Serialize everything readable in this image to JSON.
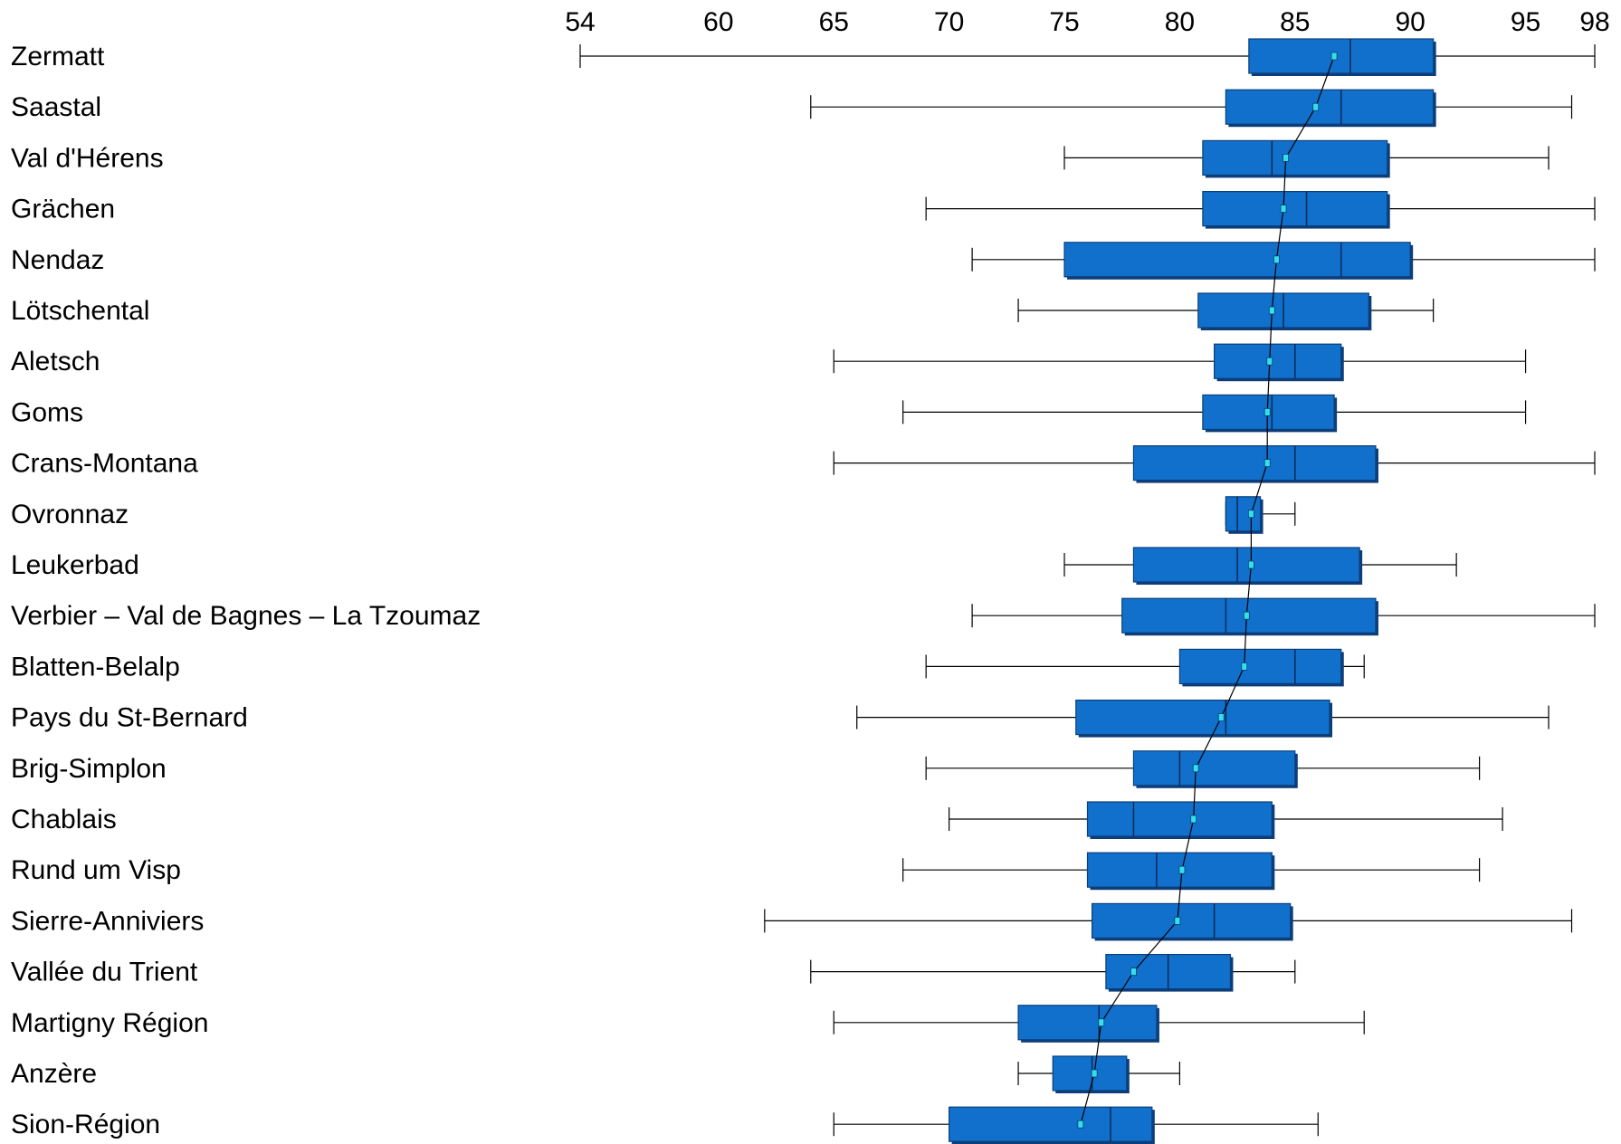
{
  "chart_data": {
    "type": "boxplot",
    "orientation": "horizontal",
    "title": "",
    "xlabel": "",
    "ylabel": "",
    "xlim": [
      54,
      98
    ],
    "x_ticks": [
      54,
      60,
      65,
      70,
      75,
      80,
      85,
      90,
      95,
      98
    ],
    "x_axis_position": "top",
    "grid": false,
    "legend": "none",
    "colors": {
      "box": "#1170cc",
      "box_edge": "#0a3f78",
      "mean_marker": "#33e0ea",
      "line": "#000000"
    },
    "categories": [
      "Zermatt",
      "Saastal",
      "Val d'Hérens",
      "Grächen",
      "Nendaz",
      "Lötschental",
      "Aletsch",
      "Goms",
      "Crans-Montana",
      "Ovronnaz",
      "Leukerbad",
      "Verbier – Val de Bagnes – La Tzoumaz",
      "Blatten-Belalp",
      "Pays du St-Bernard",
      "Brig-Simplon",
      "Chablais",
      "Rund um Visp",
      "Sierre-Anniviers",
      "Vallée du Trient",
      "Martigny Région",
      "Anzère",
      "Sion-Région"
    ],
    "boxes": [
      {
        "min": 54,
        "q1": 83,
        "median": 87.4,
        "q3": 91,
        "max": 98,
        "mean": 86.7
      },
      {
        "min": 64,
        "q1": 82,
        "median": 87,
        "q3": 91,
        "max": 97,
        "mean": 85.9
      },
      {
        "min": 75,
        "q1": 81,
        "median": 84,
        "q3": 89,
        "max": 96,
        "mean": 84.6
      },
      {
        "min": 69,
        "q1": 81,
        "median": 85.5,
        "q3": 89,
        "max": 98,
        "mean": 84.5
      },
      {
        "min": 71,
        "q1": 75,
        "median": 87,
        "q3": 90,
        "max": 98,
        "mean": 84.2
      },
      {
        "min": 73,
        "q1": 80.8,
        "median": 84.5,
        "q3": 88.2,
        "max": 91,
        "mean": 84.0
      },
      {
        "min": 65,
        "q1": 81.5,
        "median": 85,
        "q3": 87,
        "max": 95,
        "mean": 83.9
      },
      {
        "min": 68,
        "q1": 81,
        "median": 84,
        "q3": 86.7,
        "max": 95,
        "mean": 83.8
      },
      {
        "min": 65,
        "q1": 78,
        "median": 85,
        "q3": 88.5,
        "max": 98,
        "mean": 83.8
      },
      {
        "min": 82,
        "q1": 82,
        "median": 82.5,
        "q3": 83.5,
        "max": 85,
        "mean": 83.1
      },
      {
        "min": 75,
        "q1": 78,
        "median": 82.5,
        "q3": 87.8,
        "max": 92,
        "mean": 83.1
      },
      {
        "min": 71,
        "q1": 77.5,
        "median": 82,
        "q3": 88.5,
        "max": 98,
        "mean": 82.9
      },
      {
        "min": 69,
        "q1": 80,
        "median": 85,
        "q3": 87,
        "max": 88,
        "mean": 82.8
      },
      {
        "min": 66,
        "q1": 75.5,
        "median": 82,
        "q3": 86.5,
        "max": 96,
        "mean": 81.8
      },
      {
        "min": 69,
        "q1": 78,
        "median": 80,
        "q3": 85,
        "max": 93,
        "mean": 80.7
      },
      {
        "min": 70,
        "q1": 76,
        "median": 78,
        "q3": 84,
        "max": 94,
        "mean": 80.6
      },
      {
        "min": 68,
        "q1": 76,
        "median": 79,
        "q3": 84,
        "max": 93,
        "mean": 80.1
      },
      {
        "min": 62,
        "q1": 76.2,
        "median": 81.5,
        "q3": 84.8,
        "max": 97,
        "mean": 79.9
      },
      {
        "min": 64,
        "q1": 76.8,
        "median": 79.5,
        "q3": 82.2,
        "max": 85,
        "mean": 78.0
      },
      {
        "min": 65,
        "q1": 73,
        "median": 76.5,
        "q3": 79,
        "max": 88,
        "mean": 76.6
      },
      {
        "min": 73,
        "q1": 74.5,
        "median": 76.2,
        "q3": 77.7,
        "max": 80,
        "mean": 76.3
      },
      {
        "min": 65,
        "q1": 70,
        "median": 77,
        "q3": 78.8,
        "max": 86,
        "mean": 75.7
      }
    ]
  }
}
